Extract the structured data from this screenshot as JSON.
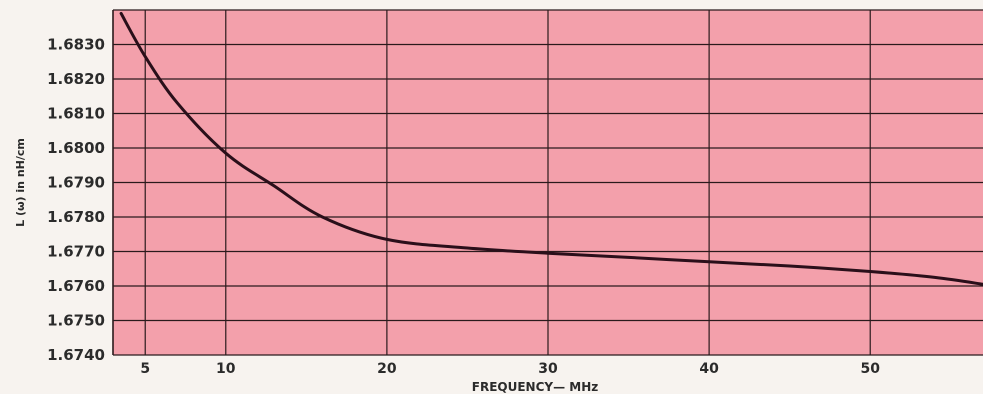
{
  "chart_data": {
    "type": "line",
    "title": "",
    "xlabel": "FREQUENCY— MHz",
    "ylabel": "L (ω) in nH/cm",
    "xlim": [
      3,
      57
    ],
    "ylim": [
      1.674,
      1.684
    ],
    "x_ticks": [
      5,
      10,
      20,
      30,
      40,
      50
    ],
    "x_tick_labels": [
      "5",
      "10",
      "20",
      "30",
      "40",
      "50"
    ],
    "y_ticks": [
      1.674,
      1.675,
      1.676,
      1.677,
      1.678,
      1.679,
      1.68,
      1.681,
      1.682,
      1.683
    ],
    "y_tick_labels": [
      "1.6740",
      "1.6750",
      "1.6760",
      "1.6770",
      "1.6780",
      "1.6790",
      "1.6800",
      "1.6810",
      "1.6820",
      "1.6830"
    ],
    "grid": true,
    "colors": {
      "plot_bg": "#f3a0ab",
      "grid": "#2a1a1c",
      "line": "#2a0f1a",
      "page_bg": "#f7f3ef"
    },
    "series": [
      {
        "x": [
          3.5,
          5,
          7,
          10,
          13,
          16,
          20,
          25,
          30,
          35,
          40,
          45,
          50,
          54,
          57
        ],
        "values": [
          1.6839,
          1.68265,
          1.6813,
          1.67985,
          1.6789,
          1.678,
          1.67735,
          1.6771,
          1.67695,
          1.67683,
          1.6767,
          1.67658,
          1.67642,
          1.67625,
          1.67605
        ]
      }
    ]
  }
}
